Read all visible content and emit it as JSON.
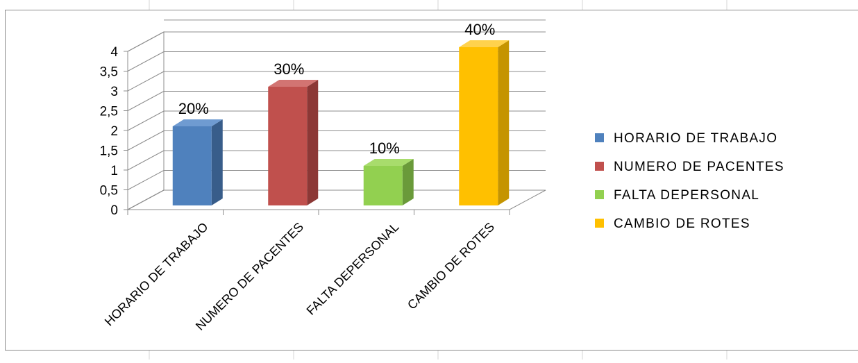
{
  "chart_data": {
    "type": "bar",
    "title": "",
    "xlabel": "",
    "ylabel": "",
    "categories": [
      "HORARIO DE TRABAJO",
      "NUMERO DE PACENTES",
      "FALTA DEPERSONAL",
      "CAMBIO DE ROTES"
    ],
    "values": [
      2,
      3,
      1,
      4
    ],
    "data_labels": [
      "20%",
      "30%",
      "10%",
      "40%"
    ],
    "y_ticks": [
      "0",
      "0,5",
      "1",
      "1,5",
      "2",
      "2,5",
      "3",
      "3,5",
      "4"
    ],
    "ylim": [
      0,
      4
    ],
    "grid": true,
    "three_d": true,
    "legend_position": "right",
    "legend": [
      "HORARIO DE TRABAJO",
      "NUMERO DE PACENTES",
      "FALTA DEPERSONAL",
      "CAMBIO DE ROTES"
    ],
    "colors": [
      "#4f81bd",
      "#c0504d",
      "#92d050",
      "#ffc000"
    ],
    "side_colors": [
      "#385d8a",
      "#8c3836",
      "#6a9a3a",
      "#c59400"
    ],
    "top_colors": [
      "#6f9bd1",
      "#d27472",
      "#a8dc6c",
      "#ffd24d"
    ]
  }
}
